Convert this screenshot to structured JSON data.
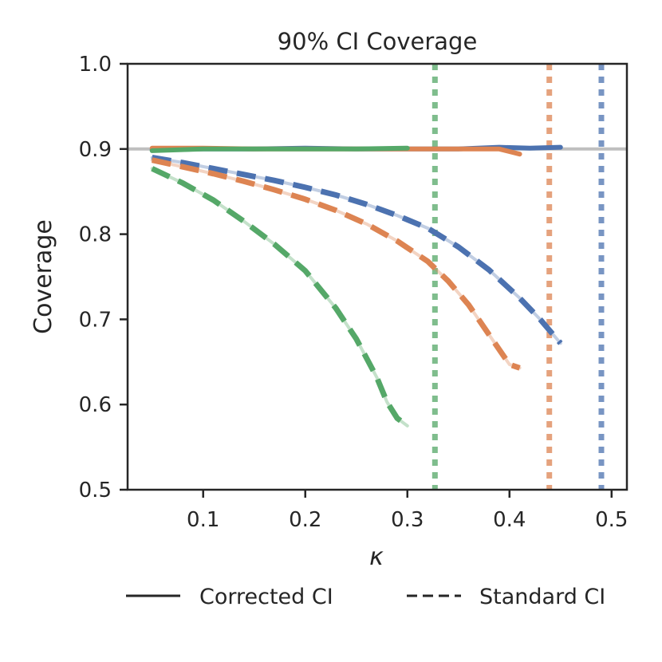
{
  "chart_data": {
    "type": "line",
    "title": "90% CI Coverage",
    "xlabel": "κ",
    "ylabel": "Coverage",
    "xlim": [
      0.026,
      0.515
    ],
    "ylim": [
      0.5,
      1.0
    ],
    "x_ticks": [
      0.1,
      0.2,
      0.3,
      0.4,
      0.5
    ],
    "x_tick_labels": [
      "0.1",
      "0.2",
      "0.3",
      "0.4",
      "0.5"
    ],
    "y_ticks": [
      0.5,
      0.6,
      0.7,
      0.8,
      0.9,
      1.0
    ],
    "y_tick_labels": [
      "0.5",
      "0.6",
      "0.7",
      "0.8",
      "0.9",
      "1.0"
    ],
    "grid": false,
    "reference_line": {
      "y": 0.9,
      "color": "#bfbfbf"
    },
    "colors": {
      "blue": "#4c72b0",
      "orange": "#dd8452",
      "green": "#55a868"
    },
    "series": [
      {
        "name": "blue-corrected",
        "color": "#4c72b0",
        "style": "solid",
        "x": [
          0.05,
          0.1,
          0.15,
          0.2,
          0.25,
          0.3,
          0.35,
          0.39,
          0.42,
          0.45
        ],
        "y": [
          0.899,
          0.9,
          0.9,
          0.901,
          0.9,
          0.9,
          0.9,
          0.902,
          0.901,
          0.902
        ]
      },
      {
        "name": "orange-corrected",
        "color": "#dd8452",
        "style": "solid",
        "x": [
          0.05,
          0.1,
          0.15,
          0.2,
          0.25,
          0.3,
          0.35,
          0.39,
          0.41
        ],
        "y": [
          0.901,
          0.901,
          0.9,
          0.9,
          0.9,
          0.9,
          0.9,
          0.9,
          0.894
        ]
      },
      {
        "name": "green-corrected",
        "color": "#55a868",
        "style": "solid",
        "x": [
          0.05,
          0.1,
          0.15,
          0.2,
          0.25,
          0.3
        ],
        "y": [
          0.898,
          0.9,
          0.9,
          0.9,
          0.9,
          0.901
        ]
      },
      {
        "name": "blue-standard",
        "color": "#4c72b0",
        "style": "dashed",
        "x": [
          0.05,
          0.08,
          0.11,
          0.14,
          0.17,
          0.2,
          0.23,
          0.26,
          0.29,
          0.32,
          0.35,
          0.38,
          0.41,
          0.43,
          0.45
        ],
        "y": [
          0.89,
          0.884,
          0.877,
          0.87,
          0.863,
          0.855,
          0.846,
          0.835,
          0.822,
          0.807,
          0.785,
          0.758,
          0.725,
          0.7,
          0.672
        ]
      },
      {
        "name": "orange-standard",
        "color": "#dd8452",
        "style": "dashed",
        "x": [
          0.05,
          0.08,
          0.11,
          0.14,
          0.17,
          0.2,
          0.23,
          0.26,
          0.29,
          0.32,
          0.34,
          0.36,
          0.38,
          0.4,
          0.41
        ],
        "y": [
          0.887,
          0.879,
          0.871,
          0.862,
          0.852,
          0.841,
          0.828,
          0.812,
          0.792,
          0.768,
          0.745,
          0.717,
          0.682,
          0.647,
          0.643
        ]
      },
      {
        "name": "green-standard",
        "color": "#55a868",
        "style": "dashed",
        "x": [
          0.05,
          0.08,
          0.11,
          0.14,
          0.17,
          0.2,
          0.23,
          0.25,
          0.27,
          0.28,
          0.29,
          0.3
        ],
        "y": [
          0.877,
          0.86,
          0.84,
          0.815,
          0.788,
          0.757,
          0.713,
          0.677,
          0.632,
          0.603,
          0.584,
          0.575
        ]
      }
    ],
    "vertical_lines": [
      {
        "x": 0.327,
        "color": "#55a868",
        "style": "dotted"
      },
      {
        "x": 0.439,
        "color": "#dd8452",
        "style": "dotted"
      },
      {
        "x": 0.49,
        "color": "#4c72b0",
        "style": "dotted"
      }
    ],
    "legend": {
      "placement": "bottom",
      "entries": [
        {
          "label": "Corrected CI",
          "style": "solid"
        },
        {
          "label": "Standard CI",
          "style": "dashed"
        }
      ]
    }
  }
}
